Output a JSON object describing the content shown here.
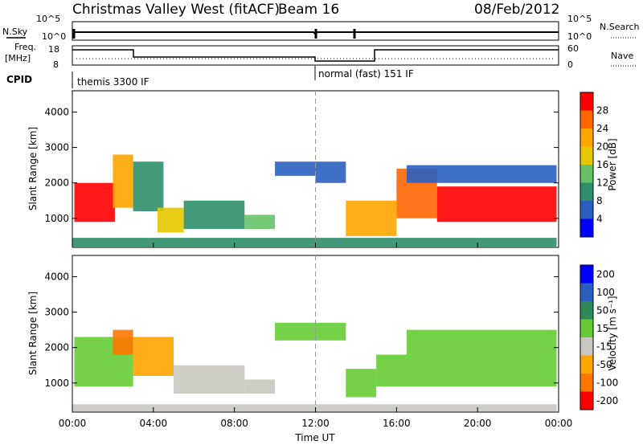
{
  "header": {
    "site": "Christmas Valley West (fitACF)",
    "beam": "Beam 16",
    "date": "08/Feb/2012"
  },
  "strip_labels": {
    "nsky": "N.Sky",
    "nsearch": "N.Search",
    "freq": "Freq.",
    "freq_unit": "[MHz]",
    "nave": "Nave",
    "cpid": "CPID"
  },
  "strip_ticks": {
    "noise_left": [
      "10^5",
      "10^0"
    ],
    "noise_right": [
      "10^5",
      "10^0"
    ],
    "freq_left": [
      "18",
      "8"
    ],
    "nave_right": [
      "60",
      "0"
    ]
  },
  "cpid_modes": [
    {
      "label": "themis 3300 IF",
      "start_hour": 0,
      "end_hour": 12
    },
    {
      "label": "normal (fast) 151 IF",
      "start_hour": 12,
      "end_hour": 24
    }
  ],
  "chart_data": [
    {
      "type": "heatmap",
      "name": "power",
      "ylabel": "Slant Range [km]",
      "xlabel": "Time UT",
      "x_ticks": [
        "00:00",
        "04:00",
        "08:00",
        "12:00",
        "16:00",
        "20:00",
        "00:00"
      ],
      "xlim_hours": [
        0,
        24
      ],
      "y_ticks": [
        1000,
        2000,
        3000,
        4000
      ],
      "ylim": [
        180,
        4600
      ],
      "colorbar": {
        "label": "Power [dB]",
        "ticks": [
          "4",
          "8",
          "12",
          "16",
          "20",
          "24",
          "28"
        ],
        "range": [
          0,
          30
        ]
      },
      "regions": [
        {
          "t0": 0.1,
          "t1": 2.1,
          "r0": 900,
          "r1": 2000,
          "val": 27
        },
        {
          "t0": 2.0,
          "t1": 3.0,
          "r0": 1300,
          "r1": 2800,
          "val": 20
        },
        {
          "t0": 3.0,
          "t1": 4.5,
          "r0": 1200,
          "r1": 2600,
          "val": 11
        },
        {
          "t0": 4.2,
          "t1": 5.5,
          "r0": 600,
          "r1": 1300,
          "val": 16
        },
        {
          "t0": 5.5,
          "t1": 8.5,
          "r0": 700,
          "r1": 1500,
          "val": 8
        },
        {
          "t0": 8.5,
          "t1": 10.0,
          "r0": 700,
          "r1": 1100,
          "val": 12
        },
        {
          "t0": 10.0,
          "t1": 12.0,
          "r0": 2200,
          "r1": 2600,
          "val": 6
        },
        {
          "t0": 12.0,
          "t1": 13.5,
          "r0": 2000,
          "r1": 2600,
          "val": 7
        },
        {
          "t0": 13.5,
          "t1": 16.0,
          "r0": 500,
          "r1": 1500,
          "val": 22
        },
        {
          "t0": 16.0,
          "t1": 18.0,
          "r0": 1000,
          "r1": 2400,
          "val": 26
        },
        {
          "t0": 18.0,
          "t1": 23.9,
          "r0": 900,
          "r1": 1900,
          "val": 27
        },
        {
          "t0": 16.5,
          "t1": 23.9,
          "r0": 2000,
          "r1": 2500,
          "val": 5
        },
        {
          "t0": 0.0,
          "t1": 23.9,
          "r0": 200,
          "r1": 450,
          "val": 9
        }
      ]
    },
    {
      "type": "heatmap",
      "name": "velocity",
      "ylabel": "Slant Range [km]",
      "xlabel": "Time UT",
      "x_ticks": [
        "00:00",
        "04:00",
        "08:00",
        "12:00",
        "16:00",
        "20:00",
        "00:00"
      ],
      "xlim_hours": [
        0,
        24
      ],
      "y_ticks": [
        1000,
        2000,
        3000,
        4000
      ],
      "ylim": [
        180,
        4600
      ],
      "colorbar": {
        "label": "Velocity [m s⁻¹]",
        "ticks": [
          "200",
          "100",
          "50",
          "15",
          "-15",
          "-50",
          "-100",
          "-200"
        ],
        "range": [
          -250,
          250
        ]
      },
      "regions": [
        {
          "t0": 0.1,
          "t1": 3.0,
          "r0": 900,
          "r1": 2300,
          "val": 0
        },
        {
          "t0": 2.0,
          "t1": 3.0,
          "r0": 1800,
          "r1": 2500,
          "val": -150
        },
        {
          "t0": 3.0,
          "t1": 5.0,
          "r0": 1200,
          "r1": 2300,
          "val": -70
        },
        {
          "t0": 5.0,
          "t1": 8.5,
          "r0": 700,
          "r1": 1500,
          "val": -60
        },
        {
          "t0": 8.5,
          "t1": 10.0,
          "r0": 700,
          "r1": 1100,
          "val": -60
        },
        {
          "t0": 10.0,
          "t1": 13.5,
          "r0": 2200,
          "r1": 2700,
          "val": 0
        },
        {
          "t0": 13.5,
          "t1": 15.0,
          "r0": 600,
          "r1": 1400,
          "val": 40
        },
        {
          "t0": 15.0,
          "t1": 23.9,
          "r0": 900,
          "r1": 1800,
          "val": 0
        },
        {
          "t0": 16.5,
          "t1": 23.9,
          "r0": 1800,
          "r1": 2500,
          "val": 0
        },
        {
          "t0": 0.0,
          "t1": 23.9,
          "r0": 200,
          "r1": 400,
          "val": -40
        }
      ]
    }
  ],
  "colors": {
    "power": [
      "#0000ff",
      "#2a5fc0",
      "#2f8f6a",
      "#66c266",
      "#e6c800",
      "#ffa500",
      "#ff6600",
      "#ff0000"
    ],
    "velocity": [
      "#0000ff",
      "#2a5fc0",
      "#2e8b57",
      "#66cc33",
      "#c8c8c0",
      "#ffa500",
      "#ff7700",
      "#ff0000"
    ]
  }
}
